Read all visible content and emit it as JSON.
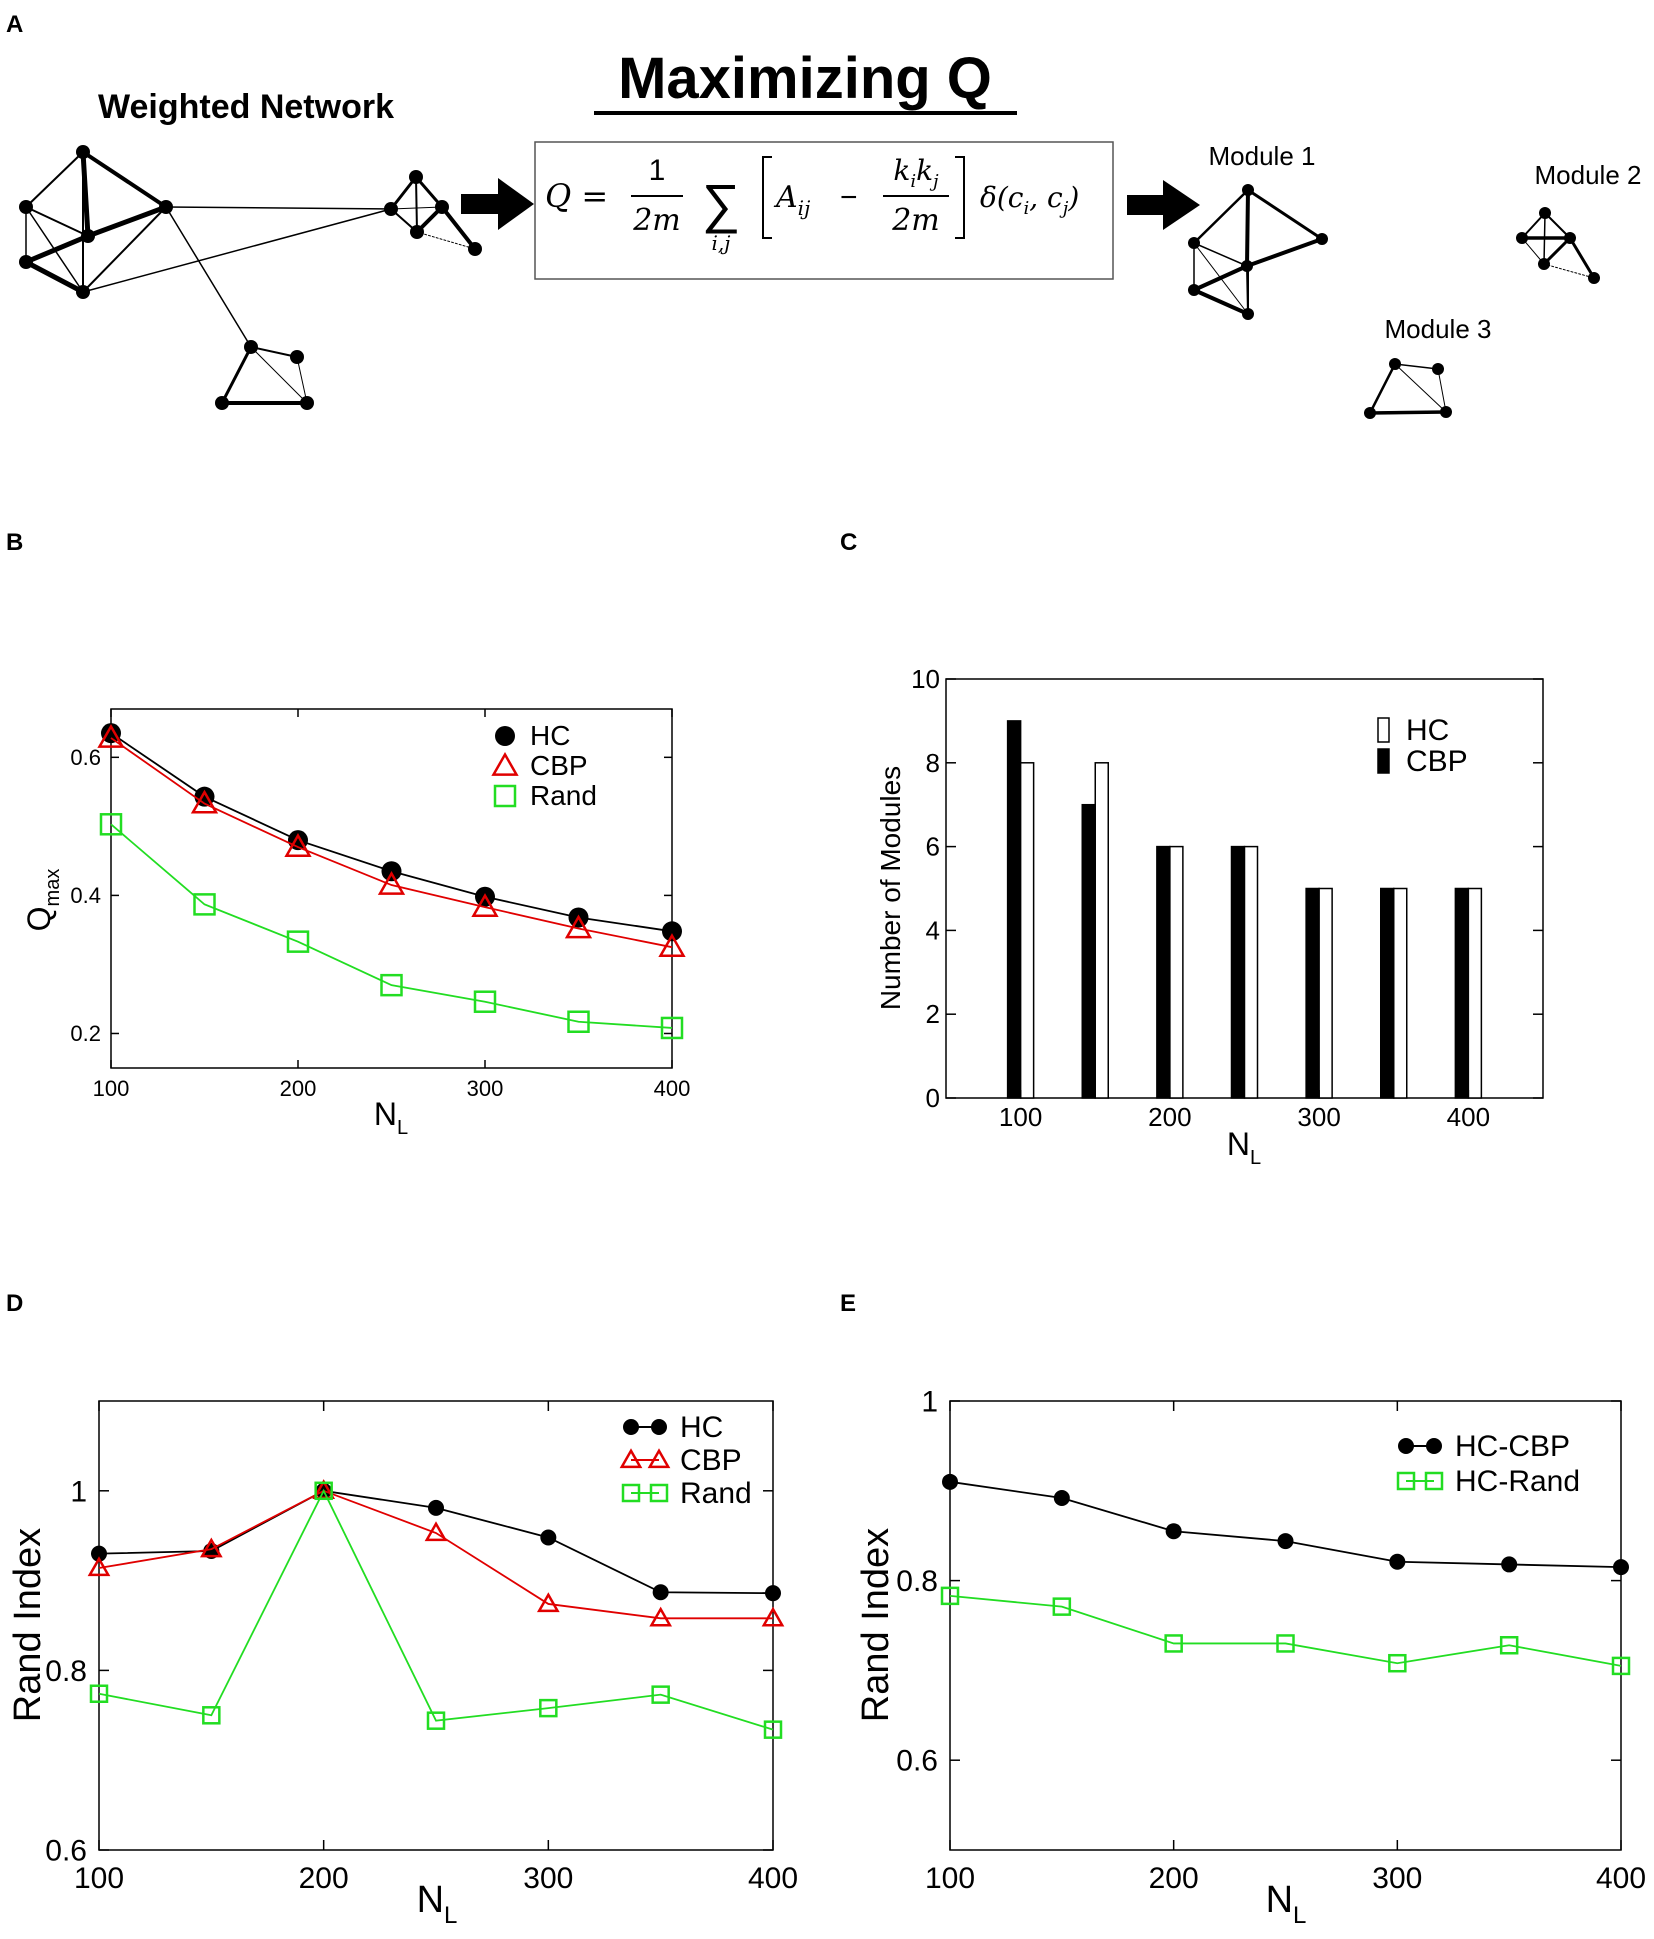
{
  "panel_a": {
    "label": "A",
    "title": "Maximizing Q",
    "network_label": "Weighted Network",
    "formula": {
      "lhs": "Q =",
      "num": "1",
      "den": "2m",
      "sum": "∑",
      "sub": "i,j",
      "term1": "A",
      "term1_sub": "ij",
      "minus": "−",
      "frac2_num": "k",
      "frac2_num_sub1": "i",
      "frac2_num_mid": "k",
      "frac2_num_sub2": "j",
      "frac2_den": "2m",
      "delta": "δ(c",
      "delta_sub1": "i",
      "delta_mid": ", c",
      "delta_sub2": "j",
      "delta_end": ")"
    },
    "modules": [
      "Module 1",
      "Module 2",
      "Module 3"
    ]
  },
  "chart_data": [
    {
      "panel": "B",
      "type": "line",
      "xlabel_main": "N",
      "xlabel_sub": "L",
      "ylabel_main": "Q",
      "ylabel_sub": "max",
      "xlim": [
        100,
        400
      ],
      "ylim": [
        0.15,
        0.67
      ],
      "xticks": [
        "100",
        "200",
        "300",
        "400"
      ],
      "yticks": [
        "0.2",
        "0.4",
        "0.6"
      ],
      "x": [
        100,
        150,
        200,
        250,
        300,
        350,
        400
      ],
      "series": [
        {
          "name": "HC",
          "values": [
            0.635,
            0.543,
            0.48,
            0.435,
            0.398,
            0.368,
            0.348
          ],
          "color": "#000000",
          "marker": "circle"
        },
        {
          "name": "CBP",
          "values": [
            0.628,
            0.533,
            0.47,
            0.415,
            0.383,
            0.352,
            0.325
          ],
          "color": "#e00000",
          "marker": "triangle"
        },
        {
          "name": "Rand",
          "values": [
            0.503,
            0.387,
            0.333,
            0.27,
            0.246,
            0.217,
            0.208
          ],
          "color": "#22dd22",
          "marker": "square"
        }
      ]
    },
    {
      "panel": "C",
      "type": "bar",
      "xlabel_main": "N",
      "xlabel_sub": "L",
      "ylabel": "Number of Modules",
      "xlim": [
        50,
        450
      ],
      "ylim": [
        0,
        10
      ],
      "xticks": [
        "100",
        "200",
        "300",
        "400"
      ],
      "yticks": [
        "0",
        "2",
        "4",
        "6",
        "8",
        "10"
      ],
      "categories": [
        100,
        150,
        200,
        250,
        300,
        350,
        400
      ],
      "series": [
        {
          "name": "HC",
          "values": [
            8,
            8,
            6,
            6,
            5,
            5,
            5
          ],
          "color": "#ffffff"
        },
        {
          "name": "CBP",
          "values": [
            9,
            7,
            6,
            6,
            5,
            5,
            5
          ],
          "color": "#000000"
        }
      ]
    },
    {
      "panel": "D",
      "type": "line",
      "xlabel_main": "N",
      "xlabel_sub": "L",
      "ylabel": "Rand Index",
      "xlim": [
        100,
        400
      ],
      "ylim": [
        0.6,
        1.1
      ],
      "xticks": [
        "100",
        "200",
        "300",
        "400"
      ],
      "yticks": [
        "0.6",
        "0.8",
        "1"
      ],
      "x": [
        100,
        150,
        200,
        250,
        300,
        350,
        400
      ],
      "series": [
        {
          "name": "HC",
          "values": [
            0.93,
            0.933,
            1.0,
            0.981,
            0.948,
            0.887,
            0.886
          ],
          "color": "#000000",
          "marker": "circle"
        },
        {
          "name": "CBP",
          "values": [
            0.914,
            0.935,
            1.0,
            0.953,
            0.874,
            0.858,
            0.858
          ],
          "color": "#e00000",
          "marker": "triangle"
        },
        {
          "name": "Rand",
          "values": [
            0.774,
            0.75,
            1.0,
            0.744,
            0.758,
            0.773,
            0.734
          ],
          "color": "#22dd22",
          "marker": "square"
        }
      ]
    },
    {
      "panel": "E",
      "type": "line",
      "xlabel_main": "N",
      "xlabel_sub": "L",
      "ylabel": "Rand Index",
      "xlim": [
        100,
        400
      ],
      "ylim": [
        0.5,
        1.0
      ],
      "xticks": [
        "100",
        "200",
        "300",
        "400"
      ],
      "yticks": [
        "0.6",
        "0.8",
        "1"
      ],
      "x": [
        100,
        150,
        200,
        250,
        300,
        350,
        400
      ],
      "series": [
        {
          "name": "HC-CBP",
          "values": [
            0.91,
            0.892,
            0.855,
            0.844,
            0.821,
            0.818,
            0.815
          ],
          "color": "#000000",
          "marker": "circle"
        },
        {
          "name": "HC-Rand",
          "values": [
            0.783,
            0.771,
            0.73,
            0.73,
            0.708,
            0.728,
            0.705
          ],
          "color": "#22dd22",
          "marker": "square"
        }
      ]
    }
  ]
}
